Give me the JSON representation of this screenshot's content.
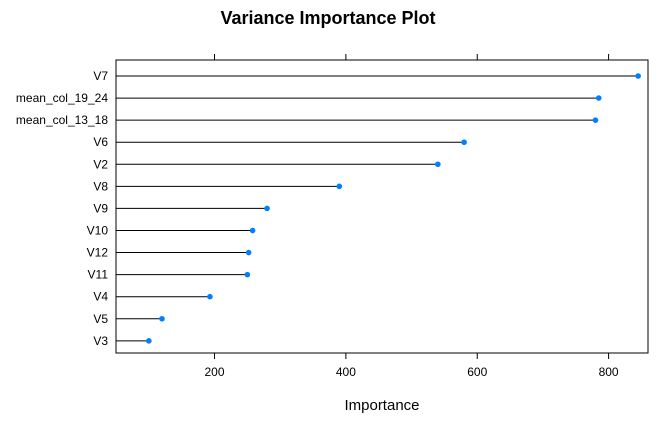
{
  "chart_data": {
    "type": "dot",
    "title": "Variance Importance Plot",
    "xlabel": "Importance",
    "ylabel": "",
    "xlim": [
      50,
      860
    ],
    "xticks": [
      200,
      400,
      600,
      800
    ],
    "categories": [
      "V7",
      "mean_col_19_24",
      "mean_col_13_18",
      "V6",
      "V2",
      "V8",
      "V9",
      "V10",
      "V12",
      "V11",
      "V4",
      "V5",
      "V3"
    ],
    "values": [
      845,
      785,
      780,
      580,
      540,
      390,
      280,
      258,
      252,
      250,
      193,
      120,
      100
    ],
    "grid": false,
    "colors": {
      "point": "#0080ff",
      "line": "#000000",
      "frame": "#000000"
    }
  }
}
